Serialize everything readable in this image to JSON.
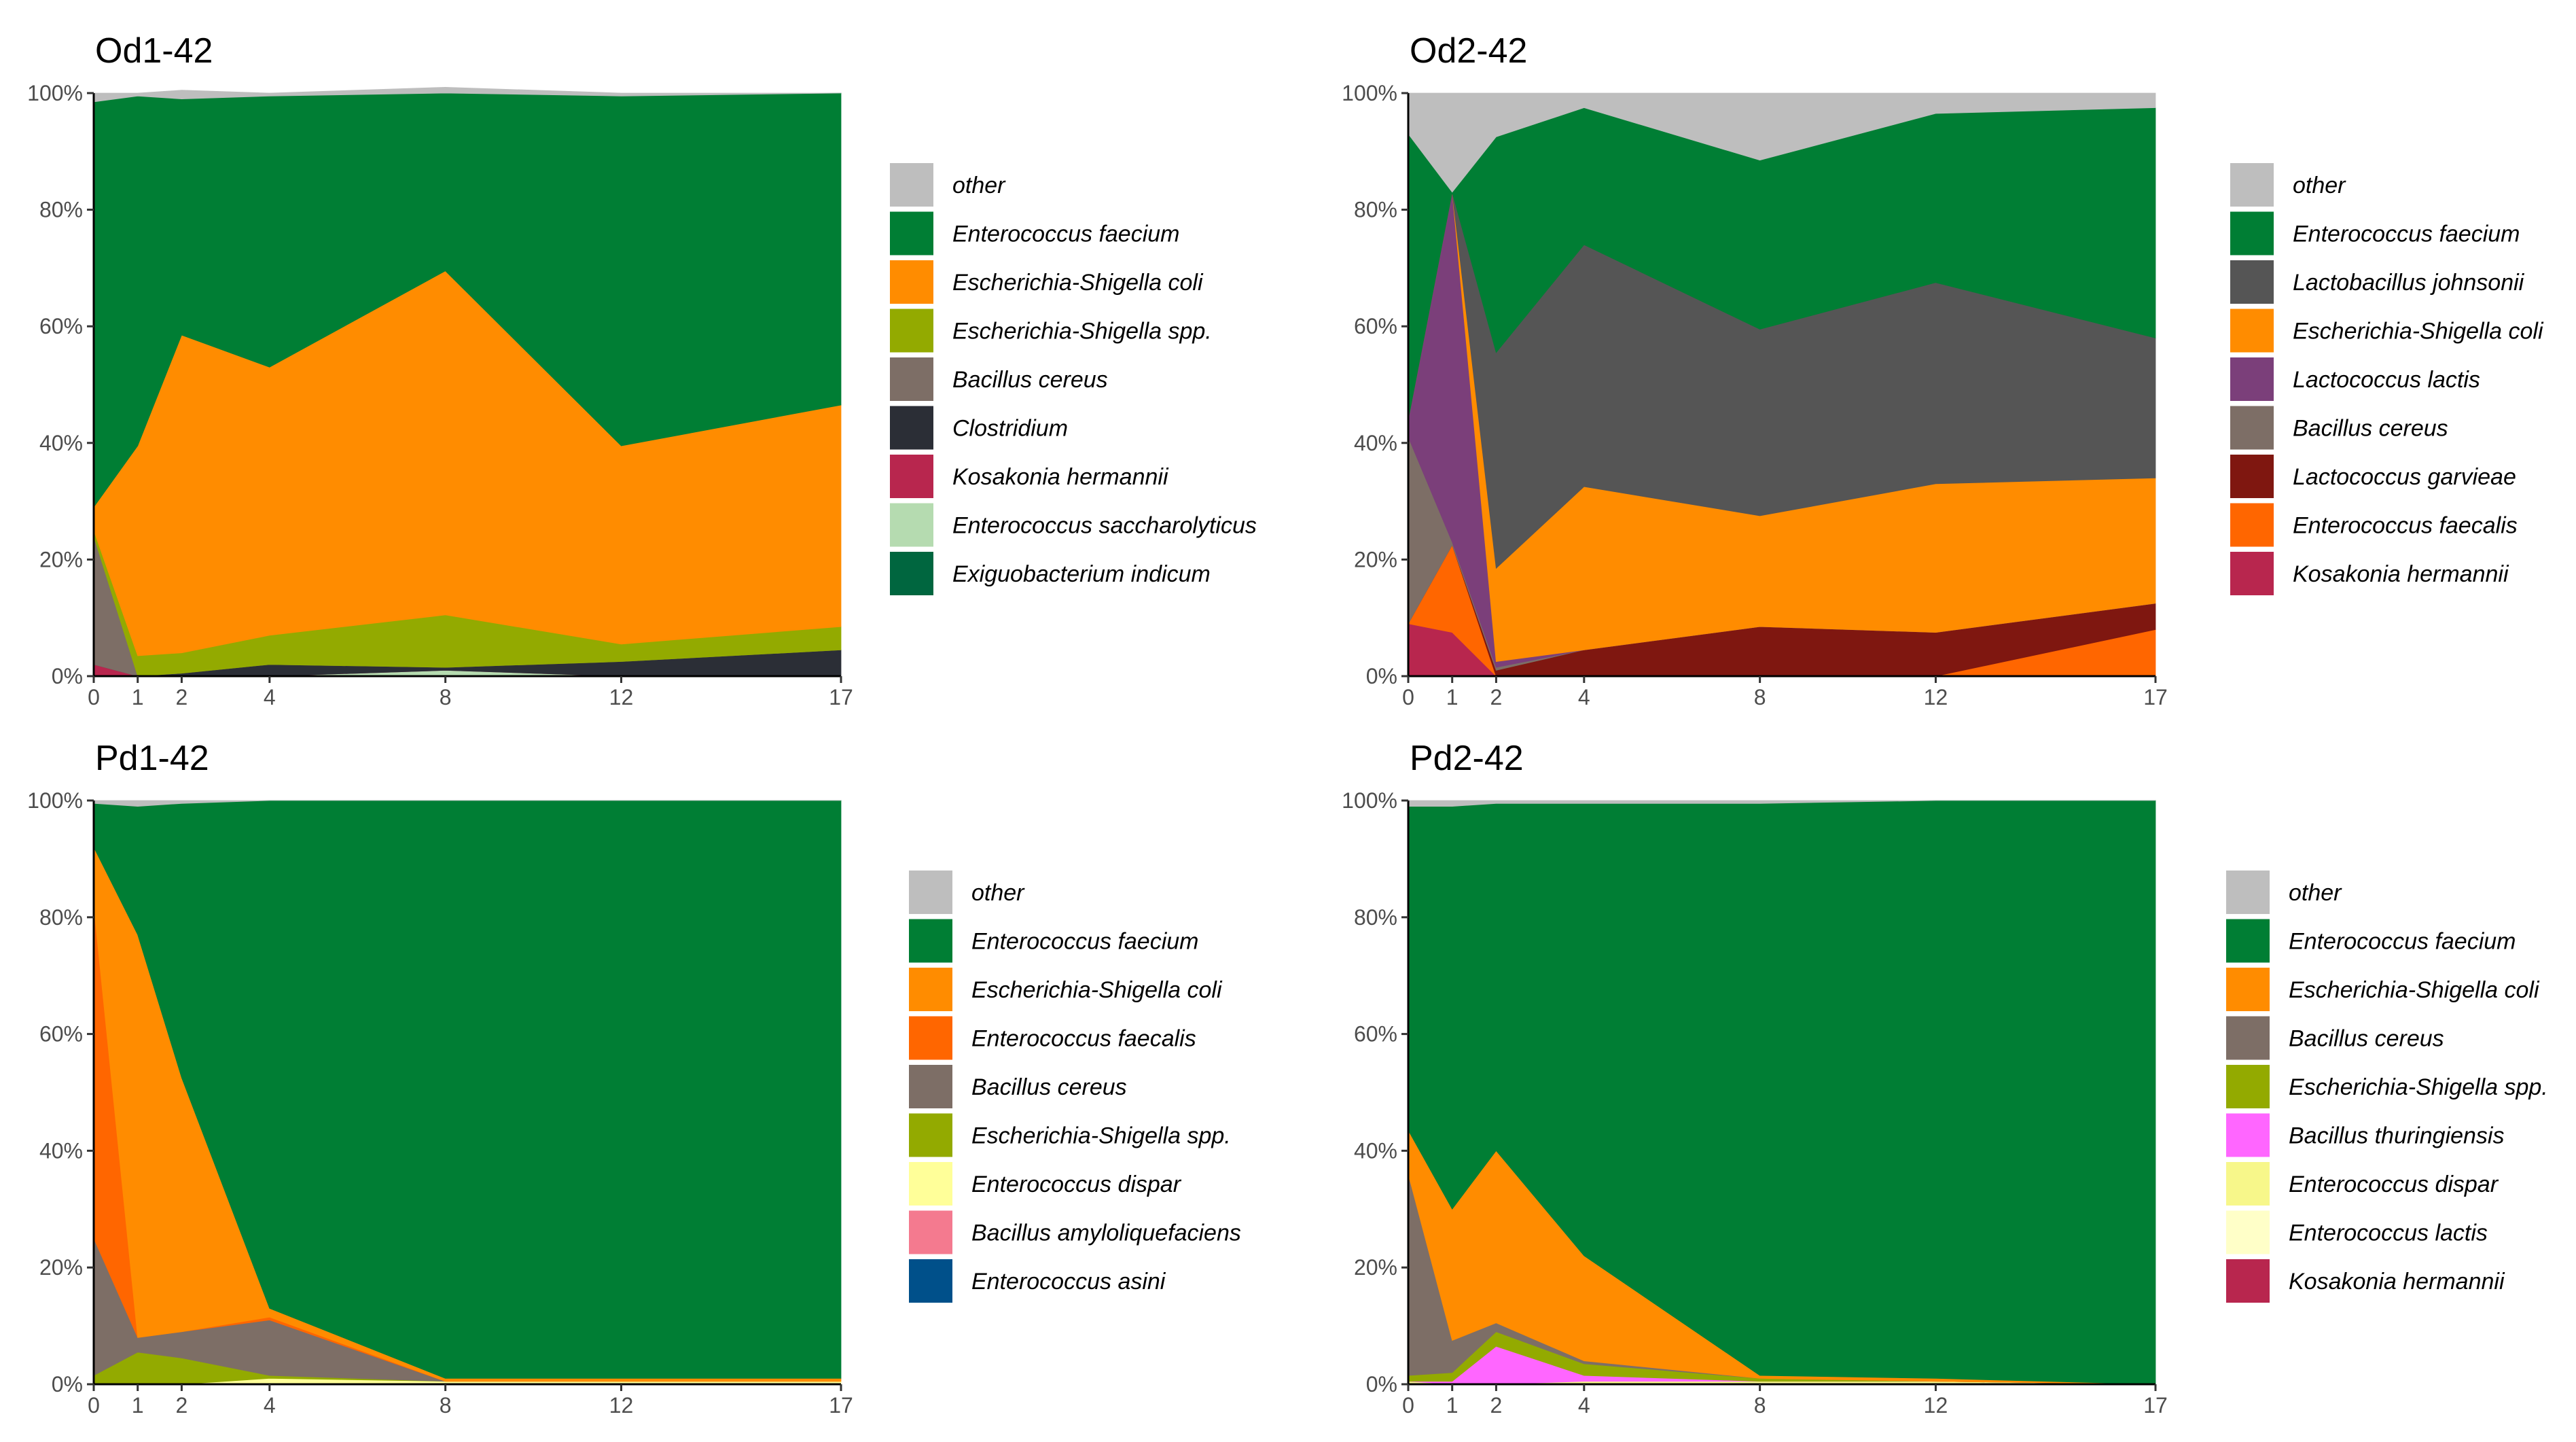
{
  "chart_data": [
    {
      "type": "area",
      "title": "Od1-42",
      "xlabel": "",
      "ylabel": "",
      "x": [
        0,
        1,
        2,
        4,
        8,
        12,
        17
      ],
      "ylim": [
        0,
        1
      ],
      "yticks": [
        "0%",
        "20%",
        "40%",
        "60%",
        "80%",
        "100%"
      ],
      "series": [
        {
          "name": "Exiguobacterium indicum",
          "color": "#00663f",
          "values": [
            0,
            0,
            0,
            0,
            0,
            0,
            0
          ]
        },
        {
          "name": "Enterococcus saccharolyticus",
          "color": "#b5dbb0",
          "values": [
            0,
            0,
            0,
            0,
            0.01,
            0,
            0
          ]
        },
        {
          "name": "Kosakonia hermannii",
          "color": "#b8264e",
          "values": [
            0.02,
            0,
            0,
            0,
            0,
            0,
            0
          ]
        },
        {
          "name": "Clostridium",
          "color": "#2b2e36",
          "values": [
            0,
            0,
            0.005,
            0.02,
            0.005,
            0.025,
            0.045
          ]
        },
        {
          "name": "Bacillus cereus",
          "color": "#7d6e66",
          "values": [
            0.22,
            0,
            0,
            0,
            0,
            0,
            0
          ]
        },
        {
          "name": "Escherichia-Shigella spp.",
          "color": "#93aa00",
          "values": [
            0.01,
            0.035,
            0.035,
            0.05,
            0.09,
            0.03,
            0.04
          ]
        },
        {
          "name": "Escherichia-Shigella coli",
          "color": "#ff8c00",
          "values": [
            0.04,
            0.36,
            0.545,
            0.46,
            0.59,
            0.34,
            0.38
          ]
        },
        {
          "name": "Enterococcus faecium",
          "color": "#007e34",
          "values": [
            0.695,
            0.6,
            0.405,
            0.465,
            0.305,
            0.6,
            0.535
          ]
        },
        {
          "name": "other",
          "color": "#bebebe",
          "values": [
            0.015,
            0.005,
            0.015,
            0.005,
            0.01,
            0.005,
            0
          ]
        }
      ],
      "legend": [
        "other",
        "Enterococcus faecium",
        "Escherichia-Shigella coli",
        "Escherichia-Shigella spp.",
        "Bacillus cereus",
        "Clostridium",
        "Kosakonia hermannii",
        "Enterococcus saccharolyticus",
        "Exiguobacterium indicum"
      ]
    },
    {
      "type": "area",
      "title": "Od2-42",
      "xlabel": "",
      "ylabel": "",
      "x": [
        0,
        1,
        2,
        4,
        8,
        12,
        17
      ],
      "ylim": [
        0,
        1
      ],
      "yticks": [
        "0%",
        "20%",
        "40%",
        "60%",
        "80%",
        "100%"
      ],
      "series": [
        {
          "name": "Kosakonia hermannii",
          "color": "#b8264e",
          "values": [
            0.09,
            0.075,
            0,
            0,
            0,
            0,
            0
          ]
        },
        {
          "name": "Enterococcus faecalis",
          "color": "#ff6600",
          "values": [
            0,
            0.15,
            0,
            0,
            0,
            0,
            0.08
          ]
        },
        {
          "name": "Lactococcus garvieae",
          "color": "#7f1710",
          "values": [
            0,
            0,
            0.01,
            0.045,
            0.085,
            0.075,
            0.045
          ]
        },
        {
          "name": "Bacillus cereus",
          "color": "#7d6e66",
          "values": [
            0.32,
            0.005,
            0.005,
            0,
            0,
            0,
            0
          ]
        },
        {
          "name": "Lactococcus lactis",
          "color": "#7b3f7a",
          "values": [
            0.03,
            0.6,
            0.01,
            0,
            0,
            0,
            0
          ]
        },
        {
          "name": "Escherichia-Shigella coli",
          "color": "#ff8c00",
          "values": [
            0,
            0,
            0.16,
            0.28,
            0.19,
            0.255,
            0.215
          ]
        },
        {
          "name": "Lactobacillus johnsonii",
          "color": "#555555",
          "values": [
            0,
            0,
            0.37,
            0.415,
            0.32,
            0.345,
            0.24
          ]
        },
        {
          "name": "Enterococcus faecium",
          "color": "#007e34",
          "values": [
            0.49,
            0.0,
            0.37,
            0.235,
            0.29,
            0.29,
            0.395
          ]
        },
        {
          "name": "other",
          "color": "#bebebe",
          "values": [
            0.07,
            0.17,
            0.075,
            0.025,
            0.115,
            0.035,
            0.025
          ]
        }
      ],
      "legend": [
        "other",
        "Enterococcus faecium",
        "Lactobacillus johnsonii",
        "Escherichia-Shigella coli",
        "Lactococcus lactis",
        "Bacillus cereus",
        "Lactococcus garvieae",
        "Enterococcus faecalis",
        "Kosakonia hermannii"
      ]
    },
    {
      "type": "area",
      "title": "Pd1-42",
      "xlabel": "",
      "ylabel": "",
      "x": [
        0,
        1,
        2,
        4,
        8,
        12,
        17
      ],
      "ylim": [
        0,
        1
      ],
      "yticks": [
        "0%",
        "20%",
        "40%",
        "60%",
        "80%",
        "100%"
      ],
      "series": [
        {
          "name": "Enterococcus asini",
          "color": "#00508a",
          "values": [
            0,
            0,
            0,
            0,
            0,
            0,
            0
          ]
        },
        {
          "name": "Bacillus amyloliquefaciens",
          "color": "#f47a8f",
          "values": [
            0,
            0,
            0,
            0,
            0,
            0,
            0
          ]
        },
        {
          "name": "Enterococcus dispar",
          "color": "#ffff99",
          "values": [
            0,
            0,
            0,
            0.01,
            0.005,
            0.005,
            0.005
          ]
        },
        {
          "name": "Escherichia-Shigella spp.",
          "color": "#93aa00",
          "values": [
            0.015,
            0.055,
            0.045,
            0.005,
            0,
            0,
            0
          ]
        },
        {
          "name": "Bacillus cereus",
          "color": "#7d6e66",
          "values": [
            0.235,
            0.025,
            0.045,
            0.095,
            0,
            0,
            0
          ]
        },
        {
          "name": "Enterococcus faecalis",
          "color": "#ff6600",
          "values": [
            0.57,
            0,
            0,
            0.005,
            0,
            0,
            0
          ]
        },
        {
          "name": "Escherichia-Shigella coli",
          "color": "#ff8c00",
          "values": [
            0.1,
            0.69,
            0.435,
            0.015,
            0.005,
            0.005,
            0.005
          ]
        },
        {
          "name": "Enterococcus faecium",
          "color": "#007e34",
          "values": [
            0.075,
            0.22,
            0.47,
            0.87,
            0.99,
            0.99,
            0.99
          ]
        },
        {
          "name": "other",
          "color": "#bebebe",
          "values": [
            0.005,
            0.01,
            0.005,
            0,
            0,
            0,
            0
          ]
        }
      ],
      "legend": [
        "other",
        "Enterococcus faecium",
        "Escherichia-Shigella coli",
        "Enterococcus faecalis",
        "Bacillus cereus",
        "Escherichia-Shigella spp.",
        "Enterococcus dispar",
        "Bacillus amyloliquefaciens",
        "Enterococcus asini"
      ]
    },
    {
      "type": "area",
      "title": "Pd2-42",
      "xlabel": "",
      "ylabel": "",
      "x": [
        0,
        1,
        2,
        4,
        8,
        12,
        17
      ],
      "ylim": [
        0,
        1
      ],
      "yticks": [
        "0%",
        "20%",
        "40%",
        "60%",
        "80%",
        "100%"
      ],
      "series": [
        {
          "name": "Kosakonia hermannii",
          "color": "#b8264e",
          "values": [
            0,
            0,
            0,
            0,
            0,
            0,
            0
          ]
        },
        {
          "name": "Enterococcus lactis",
          "color": "#ffffc8",
          "values": [
            0,
            0,
            0,
            0,
            0,
            0,
            0
          ]
        },
        {
          "name": "Enterococcus dispar",
          "color": "#f7f78a",
          "values": [
            0.005,
            0,
            0,
            0.005,
            0.005,
            0.005,
            0
          ]
        },
        {
          "name": "Bacillus thuringiensis",
          "color": "#ff66ff",
          "values": [
            0,
            0.005,
            0.065,
            0.01,
            0,
            0,
            0
          ]
        },
        {
          "name": "Escherichia-Shigella spp.",
          "color": "#93aa00",
          "values": [
            0.01,
            0.015,
            0.025,
            0.02,
            0.005,
            0,
            0
          ]
        },
        {
          "name": "Bacillus cereus",
          "color": "#7d6e66",
          "values": [
            0.345,
            0.055,
            0.015,
            0.005,
            0,
            0,
            0
          ]
        },
        {
          "name": "Escherichia-Shigella coli",
          "color": "#ff8c00",
          "values": [
            0.075,
            0.225,
            0.295,
            0.18,
            0.005,
            0.005,
            0
          ]
        },
        {
          "name": "Enterococcus faecium",
          "color": "#007e34",
          "values": [
            0.555,
            0.69,
            0.595,
            0.775,
            0.98,
            0.99,
            1.0
          ]
        },
        {
          "name": "other",
          "color": "#bebebe",
          "values": [
            0.01,
            0.01,
            0.005,
            0.005,
            0.005,
            0,
            0
          ]
        }
      ],
      "legend": [
        "other",
        "Enterococcus faecium",
        "Escherichia-Shigella coli",
        "Bacillus cereus",
        "Escherichia-Shigella spp.",
        "Bacillus thuringiensis",
        "Enterococcus dispar",
        "Enterococcus lactis",
        "Kosakonia hermannii"
      ]
    }
  ]
}
